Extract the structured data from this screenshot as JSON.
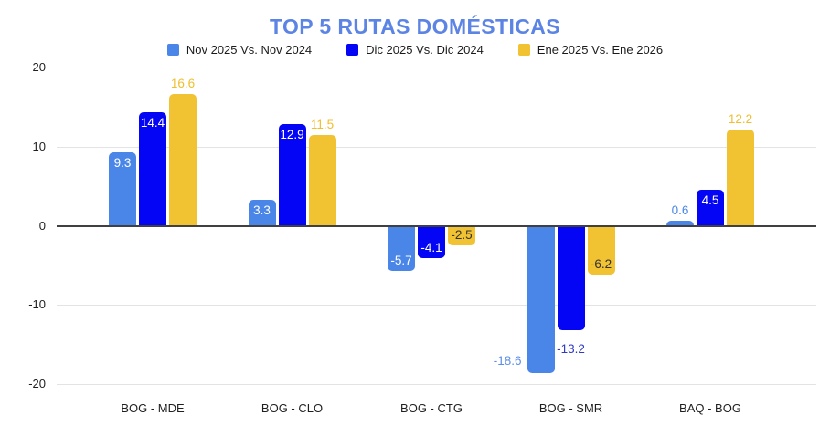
{
  "chart_data": {
    "type": "bar",
    "title": "TOP 5 RUTAS DOMÉSTICAS",
    "title_color": "#5B84E4",
    "categories": [
      "BOG - MDE",
      "BOG - CLO",
      "BOG - CTG",
      "BOG - SMR",
      "BAQ - BOG"
    ],
    "y_ticks": [
      20,
      10,
      0,
      -10,
      -20
    ],
    "ylim": [
      -20,
      20
    ],
    "grid": true,
    "legend_position": "top",
    "axis": {
      "grid_color": "#E3E3E3",
      "zero_line_color": "#404040",
      "tick_label_color": "#1F1F1F"
    },
    "series": [
      {
        "name": "Nov 2025 Vs. Nov 2024",
        "color": "#4A86E8",
        "values": [
          9.3,
          3.3,
          -5.7,
          -18.6,
          0.6
        ],
        "labels": [
          {
            "text": "9.3",
            "placement": "inside-top",
            "color": "#FFFFFF"
          },
          {
            "text": "3.3",
            "placement": "inside-top",
            "color": "#FFFFFF"
          },
          {
            "text": "-5.7",
            "placement": "inside-bottom",
            "color": "#FFFFFF"
          },
          {
            "text": "-18.6",
            "placement": "outside-left",
            "color": "#5B8DE8"
          },
          {
            "text": "0.6",
            "placement": "above",
            "color": "#4A86E8"
          }
        ]
      },
      {
        "name": "Dic 2025 Vs. Dic 2024",
        "color": "#0505F5",
        "values": [
          14.4,
          12.9,
          -4.1,
          -13.2,
          4.5
        ],
        "labels": [
          {
            "text": "14.4",
            "placement": "inside-top",
            "color": "#FFFFFF"
          },
          {
            "text": "12.9",
            "placement": "inside-top",
            "color": "#FFFFFF"
          },
          {
            "text": "-4.1",
            "placement": "inside-bottom",
            "color": "#FFFFFF"
          },
          {
            "text": "-13.2",
            "placement": "below",
            "color": "#2E3AC2"
          },
          {
            "text": "4.5",
            "placement": "inside-top",
            "color": "#FFFFFF"
          }
        ]
      },
      {
        "name": "Ene 2025 Vs. Ene 2026",
        "color": "#F1C232",
        "values": [
          16.6,
          11.5,
          -2.5,
          -6.2,
          12.2
        ],
        "labels": [
          {
            "text": "16.6",
            "placement": "above",
            "color": "#F0BE2E"
          },
          {
            "text": "11.5",
            "placement": "above",
            "color": "#F0BE2E"
          },
          {
            "text": "-2.5",
            "placement": "inside-bottom",
            "color": "#333333"
          },
          {
            "text": "-6.2",
            "placement": "inside-bottom",
            "color": "#333333"
          },
          {
            "text": "12.2",
            "placement": "above",
            "color": "#F0BE2E"
          }
        ]
      }
    ]
  }
}
